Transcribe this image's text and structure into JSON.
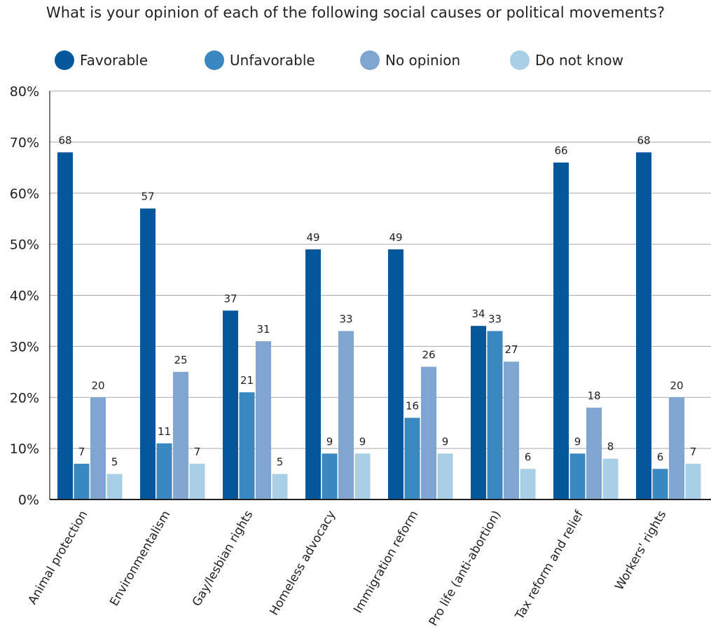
{
  "chart_data": {
    "type": "bar",
    "title": "What is your opinion of each of the following social causes or political movements?",
    "categories": [
      "Animal protection",
      "Environmentalism",
      "Gay/lesbian rights",
      "Homeless advocacy",
      "Immigration reform",
      "Pro life (anti-abortion)",
      "Tax reform and relief",
      "Workers' rights"
    ],
    "series": [
      {
        "name": "Favorable",
        "color": "#03579a",
        "values": [
          68,
          57,
          37,
          49,
          49,
          34,
          66,
          68
        ]
      },
      {
        "name": "Unfavorable",
        "color": "#3a88c2",
        "values": [
          7,
          11,
          21,
          9,
          16,
          33,
          9,
          6
        ]
      },
      {
        "name": "No opinion",
        "color": "#7fa6d1",
        "values": [
          20,
          25,
          31,
          33,
          26,
          27,
          18,
          20
        ]
      },
      {
        "name": "Do not know",
        "color": "#a9cfe7",
        "values": [
          5,
          7,
          5,
          9,
          9,
          6,
          8,
          7
        ]
      }
    ],
    "ylim": [
      0,
      80
    ],
    "yticks": [
      0,
      10,
      20,
      30,
      40,
      50,
      60,
      70,
      80
    ],
    "ytick_labels": [
      "0%",
      "10%",
      "20%",
      "30%",
      "40%",
      "50%",
      "60%",
      "70%",
      "80%"
    ],
    "xlabel": "",
    "ylabel": "",
    "grid": true,
    "legend": "top",
    "data_labels": true
  }
}
